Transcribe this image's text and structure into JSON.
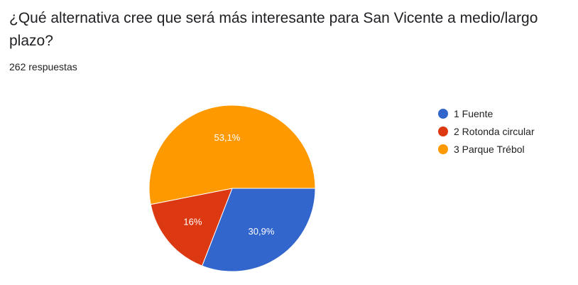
{
  "question": {
    "title": "¿Qué alternativa cree que será más interesante para San Vicente a medio/largo plazo?",
    "response_count": "262 respuestas"
  },
  "chart_data": {
    "type": "pie",
    "slices": [
      {
        "label": "1 Fuente",
        "value": 30.9,
        "display": "30,9%",
        "color": "#3366cc"
      },
      {
        "label": "2 Rotonda circular",
        "value": 16.0,
        "display": "16%",
        "color": "#dc3912"
      },
      {
        "label": "3 Parque Trébol",
        "value": 53.1,
        "display": "53,1%",
        "color": "#ff9900"
      }
    ],
    "legend_position": "right"
  }
}
